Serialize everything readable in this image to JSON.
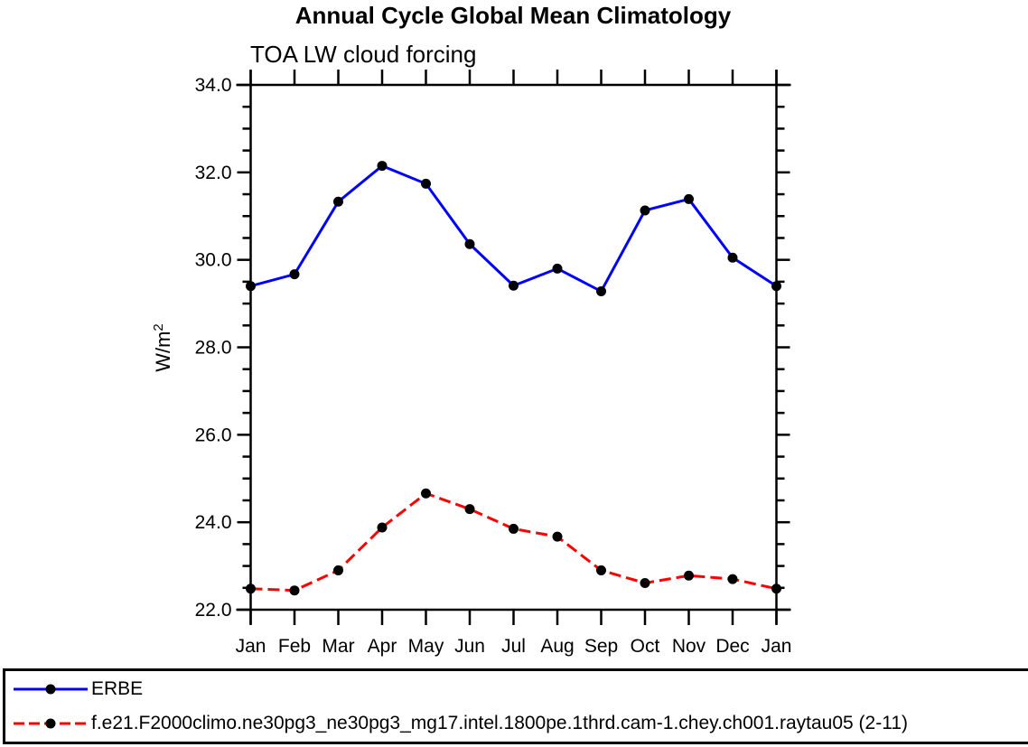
{
  "chart_data": {
    "type": "line",
    "title": "Annual Cycle Global Mean Climatology",
    "subtitle": "TOA LW cloud forcing",
    "ylabel": "W/m²",
    "ylabel_base": "W/m",
    "ylabel_sup": "2",
    "x_categories": [
      "Jan",
      "Feb",
      "Mar",
      "Apr",
      "May",
      "Jun",
      "Jul",
      "Aug",
      "Sep",
      "Oct",
      "Nov",
      "Dec",
      "Jan"
    ],
    "ylim": [
      22.0,
      34.0
    ],
    "y_major_ticks": [
      22.0,
      24.0,
      26.0,
      28.0,
      30.0,
      32.0,
      34.0
    ],
    "y_ticklabels": [
      "22.0",
      "24.0",
      "26.0",
      "28.0",
      "30.0",
      "32.0",
      "34.0"
    ],
    "y_minor_step": 0.5,
    "grid": false,
    "axis_color": "#000000",
    "legend_position": "bottom-outside",
    "series": [
      {
        "name": "ERBE",
        "color": "#0000ff",
        "line_style": "solid",
        "marker": "filled-circle",
        "marker_color": "#000000",
        "values": [
          29.4,
          29.67,
          31.33,
          32.15,
          31.74,
          30.36,
          29.41,
          29.8,
          29.28,
          31.13,
          31.39,
          30.05,
          29.4
        ]
      },
      {
        "name": "f.e21.F2000climo.ne30pg3_ne30pg3_mg17.intel.1800pe.1thrd.cam-1.chey.ch001.raytau05 (2-11)",
        "color": "#ff0000",
        "line_style": "dashed",
        "marker": "filled-circle",
        "marker_color": "#000000",
        "values": [
          22.48,
          22.44,
          22.9,
          23.88,
          24.66,
          24.3,
          23.85,
          23.67,
          22.9,
          22.61,
          22.78,
          22.7,
          22.48
        ]
      }
    ]
  }
}
